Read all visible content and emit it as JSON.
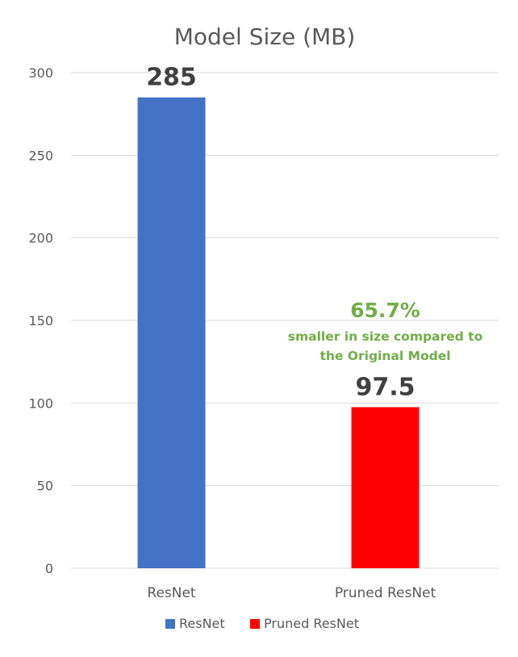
{
  "chart_data": {
    "type": "bar",
    "title": "Model Size (MB)",
    "xlabel": "",
    "ylabel": "",
    "categories": [
      "ResNet",
      "Pruned ResNet"
    ],
    "values": [
      285,
      97.5
    ],
    "value_labels": [
      "285",
      "97.5"
    ],
    "colors": [
      "#4472c4",
      "#ff0000"
    ],
    "ylim": [
      0,
      300
    ],
    "yticks": [
      0,
      50,
      100,
      150,
      200,
      250,
      300
    ],
    "grid": true,
    "legend": {
      "position": "bottom",
      "entries": [
        "ResNet",
        "Pruned ResNet"
      ]
    },
    "annotation": {
      "percent": "65.7%",
      "line1": "smaller in size compared to",
      "line2": "the Original Model",
      "color": "#70ad47"
    }
  }
}
